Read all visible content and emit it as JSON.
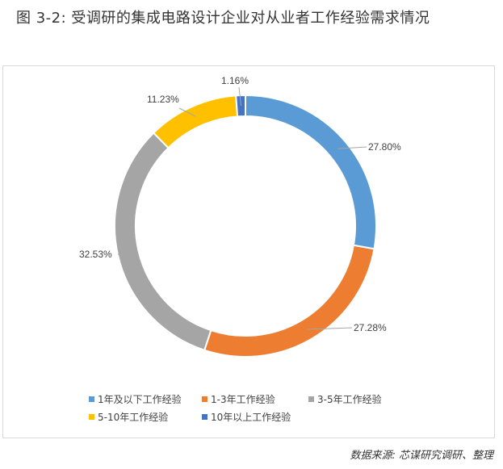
{
  "figure_title": "图 3-2: 受调研的集成电路设计企业对从业者工作经验需求情况",
  "source_note": "数据来源: 芯谋研究调研、整理",
  "chart_data": {
    "type": "pie",
    "donut": true,
    "title": "",
    "legend_position": "bottom",
    "series": [
      {
        "name": "1年及以下工作经验",
        "value": 27.8,
        "label": "27.80%",
        "color": "#5b9bd5"
      },
      {
        "name": "1-3年工作经验",
        "value": 27.28,
        "label": "27.28%",
        "color": "#ed7d31"
      },
      {
        "name": "3-5年工作经验",
        "value": 32.53,
        "label": "32.53%",
        "color": "#a5a5a5"
      },
      {
        "name": "5-10年工作经验",
        "value": 11.23,
        "label": "11.23%",
        "color": "#ffc000"
      },
      {
        "name": "10年以上工作经验",
        "value": 1.16,
        "label": "1.16%",
        "color": "#4472c4"
      }
    ]
  }
}
